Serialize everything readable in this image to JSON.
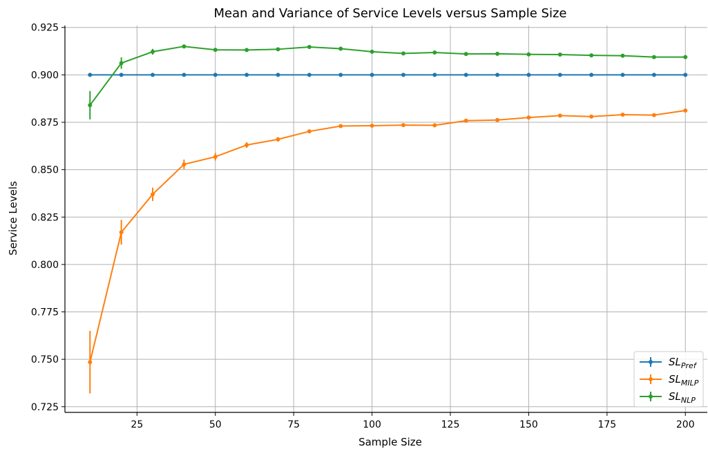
{
  "chart_data": {
    "type": "line",
    "title": "Mean and Variance of Service Levels versus Sample Size",
    "xlabel": "Sample Size",
    "ylabel": "Service Levels",
    "xlim": [
      2,
      207
    ],
    "ylim": [
      0.722,
      0.926
    ],
    "xticks": [
      25,
      50,
      75,
      100,
      125,
      150,
      175,
      200
    ],
    "xtick_labels": [
      "25",
      "50",
      "75",
      "100",
      "125",
      "150",
      "175",
      "200"
    ],
    "yticks": [
      0.725,
      0.75,
      0.775,
      0.8,
      0.825,
      0.85,
      0.875,
      0.9,
      0.925
    ],
    "ytick_labels": [
      "0.725",
      "0.750",
      "0.775",
      "0.800",
      "0.825",
      "0.850",
      "0.875",
      "0.900",
      "0.925"
    ],
    "grid": true,
    "legend_position": "bottom-right",
    "x": [
      10,
      20,
      30,
      40,
      50,
      60,
      70,
      80,
      90,
      100,
      110,
      120,
      130,
      140,
      150,
      160,
      170,
      180,
      190,
      200
    ],
    "series": [
      {
        "name": "SL",
        "name_sub": "Pref",
        "color": "#1f77b4",
        "values": [
          0.9,
          0.9,
          0.9,
          0.9,
          0.9,
          0.9,
          0.9,
          0.9,
          0.9,
          0.9,
          0.9,
          0.9,
          0.9,
          0.9,
          0.9,
          0.9,
          0.9,
          0.9,
          0.9,
          0.9
        ],
        "errors": [
          0,
          0,
          0,
          0,
          0,
          0,
          0,
          0,
          0,
          0,
          0,
          0,
          0,
          0,
          0,
          0,
          0,
          0,
          0,
          0
        ]
      },
      {
        "name": "SL",
        "name_sub": "MILP",
        "color": "#ff7f0e",
        "values": [
          0.7485,
          0.817,
          0.837,
          0.8528,
          0.8568,
          0.863,
          0.866,
          0.8702,
          0.873,
          0.8732,
          0.8735,
          0.8734,
          0.8758,
          0.8762,
          0.8775,
          0.8785,
          0.878,
          0.879,
          0.8788,
          0.8812
        ],
        "errors": [
          0.0165,
          0.0065,
          0.0035,
          0.0025,
          0.002,
          0.0015,
          0.0012,
          0.001,
          0.0008,
          0.0007,
          0.0006,
          0.0006,
          0.0005,
          0.0005,
          0.0005,
          0.0004,
          0.0004,
          0.0004,
          0.0004,
          0.0004
        ]
      },
      {
        "name": "SL",
        "name_sub": "NLP",
        "color": "#2ca02c",
        "values": [
          0.884,
          0.9062,
          0.9122,
          0.915,
          0.9132,
          0.9131,
          0.9135,
          0.9147,
          0.9138,
          0.9122,
          0.9113,
          0.9118,
          0.911,
          0.9111,
          0.9108,
          0.9107,
          0.9103,
          0.9101,
          0.9094,
          0.9094
        ],
        "errors": [
          0.0075,
          0.003,
          0.0015,
          0.001,
          0.0008,
          0.0006,
          0.0005,
          0.0005,
          0.0004,
          0.0004,
          0.0003,
          0.0003,
          0.0003,
          0.0003,
          0.0003,
          0.0003,
          0.0003,
          0.0003,
          0.0003,
          0.0003
        ]
      }
    ]
  }
}
